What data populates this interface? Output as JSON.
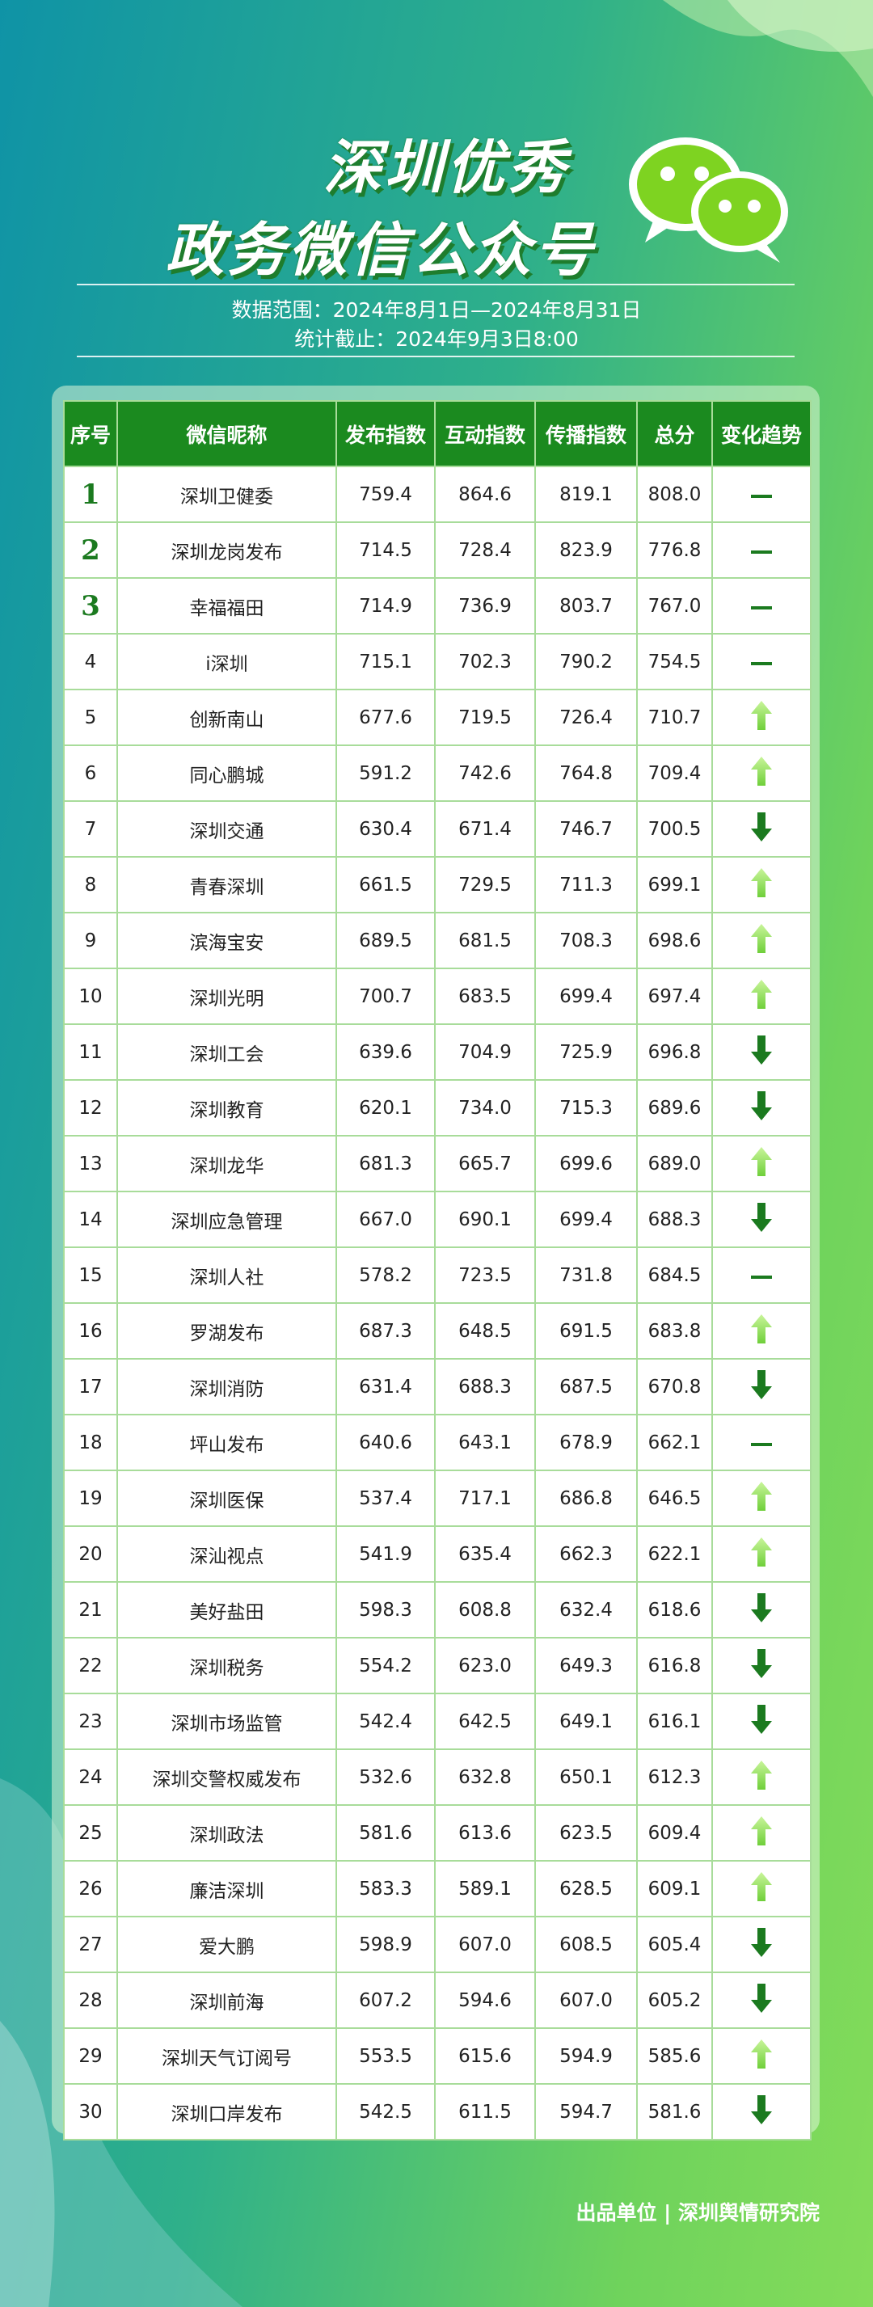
{
  "header": {
    "title_line1": "深圳优秀",
    "title_line2": "政务微信公众号",
    "date_range": "数据范围：2024年8月1日—2024年8月31日",
    "cutoff": "统计截止：2024年9月3日8:00"
  },
  "table": {
    "columns": [
      "序号",
      "微信昵称",
      "发布指数",
      "互动指数",
      "传播指数",
      "总分",
      "变化趋势"
    ],
    "rows": [
      {
        "cells": [
          "1",
          "深圳卫健委",
          "759.4",
          "864.6",
          "819.1",
          "808.0"
        ],
        "trend": "flat"
      },
      {
        "cells": [
          "2",
          "深圳龙岗发布",
          "714.5",
          "728.4",
          "823.9",
          "776.8"
        ],
        "trend": "flat"
      },
      {
        "cells": [
          "3",
          "幸福福田",
          "714.9",
          "736.9",
          "803.7",
          "767.0"
        ],
        "trend": "flat"
      },
      {
        "cells": [
          "4",
          "i深圳",
          "715.1",
          "702.3",
          "790.2",
          "754.5"
        ],
        "trend": "flat"
      },
      {
        "cells": [
          "5",
          "创新南山",
          "677.6",
          "719.5",
          "726.4",
          "710.7"
        ],
        "trend": "up"
      },
      {
        "cells": [
          "6",
          "同心鹏城",
          "591.2",
          "742.6",
          "764.8",
          "709.4"
        ],
        "trend": "up"
      },
      {
        "cells": [
          "7",
          "深圳交通",
          "630.4",
          "671.4",
          "746.7",
          "700.5"
        ],
        "trend": "down"
      },
      {
        "cells": [
          "8",
          "青春深圳",
          "661.5",
          "729.5",
          "711.3",
          "699.1"
        ],
        "trend": "up"
      },
      {
        "cells": [
          "9",
          "滨海宝安",
          "689.5",
          "681.5",
          "708.3",
          "698.6"
        ],
        "trend": "up"
      },
      {
        "cells": [
          "10",
          "深圳光明",
          "700.7",
          "683.5",
          "699.4",
          "697.4"
        ],
        "trend": "up"
      },
      {
        "cells": [
          "11",
          "深圳工会",
          "639.6",
          "704.9",
          "725.9",
          "696.8"
        ],
        "trend": "down"
      },
      {
        "cells": [
          "12",
          "深圳教育",
          "620.1",
          "734.0",
          "715.3",
          "689.6"
        ],
        "trend": "down"
      },
      {
        "cells": [
          "13",
          "深圳龙华",
          "681.3",
          "665.7",
          "699.6",
          "689.0"
        ],
        "trend": "up"
      },
      {
        "cells": [
          "14",
          "深圳应急管理",
          "667.0",
          "690.1",
          "699.4",
          "688.3"
        ],
        "trend": "down"
      },
      {
        "cells": [
          "15",
          "深圳人社",
          "578.2",
          "723.5",
          "731.8",
          "684.5"
        ],
        "trend": "flat"
      },
      {
        "cells": [
          "16",
          "罗湖发布",
          "687.3",
          "648.5",
          "691.5",
          "683.8"
        ],
        "trend": "up"
      },
      {
        "cells": [
          "17",
          "深圳消防",
          "631.4",
          "688.3",
          "687.5",
          "670.8"
        ],
        "trend": "down"
      },
      {
        "cells": [
          "18",
          "坪山发布",
          "640.6",
          "643.1",
          "678.9",
          "662.1"
        ],
        "trend": "flat"
      },
      {
        "cells": [
          "19",
          "深圳医保",
          "537.4",
          "717.1",
          "686.8",
          "646.5"
        ],
        "trend": "up"
      },
      {
        "cells": [
          "20",
          "深汕视点",
          "541.9",
          "635.4",
          "662.3",
          "622.1"
        ],
        "trend": "up"
      },
      {
        "cells": [
          "21",
          "美好盐田",
          "598.3",
          "608.8",
          "632.4",
          "618.6"
        ],
        "trend": "down"
      },
      {
        "cells": [
          "22",
          "深圳税务",
          "554.2",
          "623.0",
          "649.3",
          "616.8"
        ],
        "trend": "down"
      },
      {
        "cells": [
          "23",
          "深圳市场监管",
          "542.4",
          "642.5",
          "649.1",
          "616.1"
        ],
        "trend": "down"
      },
      {
        "cells": [
          "24",
          "深圳交警权威发布",
          "532.6",
          "632.8",
          "650.1",
          "612.3"
        ],
        "trend": "up"
      },
      {
        "cells": [
          "25",
          "深圳政法",
          "581.6",
          "613.6",
          "623.5",
          "609.4"
        ],
        "trend": "up"
      },
      {
        "cells": [
          "26",
          "廉洁深圳",
          "583.3",
          "589.1",
          "628.5",
          "609.1"
        ],
        "trend": "up"
      },
      {
        "cells": [
          "27",
          "爱大鹏",
          "598.9",
          "607.0",
          "608.5",
          "605.4"
        ],
        "trend": "down"
      },
      {
        "cells": [
          "28",
          "深圳前海",
          "607.2",
          "594.6",
          "607.0",
          "605.2"
        ],
        "trend": "down"
      },
      {
        "cells": [
          "29",
          "深圳天气订阅号",
          "553.5",
          "615.6",
          "594.9",
          "585.6"
        ],
        "trend": "up"
      },
      {
        "cells": [
          "30",
          "深圳口岸发布",
          "542.5",
          "611.5",
          "594.7",
          "581.6"
        ],
        "trend": "down"
      }
    ]
  },
  "footer": {
    "credit": "出品单位 | 深圳舆情研究院"
  }
}
